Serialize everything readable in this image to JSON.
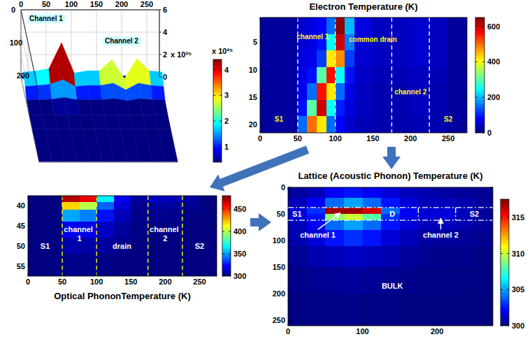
{
  "chart_data": [
    {
      "type": "surface",
      "x": [
        0,
        25,
        50,
        75,
        100,
        125,
        150,
        175,
        200,
        225,
        250,
        275
      ],
      "y": [
        0,
        20,
        40,
        60,
        80,
        120,
        160,
        200,
        260
      ],
      "z": [
        [
          0.1,
          0.1,
          0.1,
          0.1,
          0.1,
          0.1,
          0.1,
          0.1,
          0.1,
          0.1,
          0.1,
          0.1
        ],
        [
          0.4,
          0.4,
          0.5,
          0.8,
          0.4,
          0.4,
          0.4,
          0.5,
          0.3,
          0.5,
          0.4,
          0.4
        ],
        [
          1.6,
          1.7,
          1.9,
          4.2,
          1.5,
          1.7,
          1.7,
          2.7,
          1.0,
          2.8,
          1.7,
          1.6
        ],
        [
          0.9,
          1.0,
          1.1,
          1.5,
          0.9,
          1.0,
          1.0,
          1.2,
          0.6,
          1.2,
          1.0,
          0.9
        ],
        [
          0.3,
          0.3,
          0.35,
          0.5,
          0.3,
          0.3,
          0.3,
          0.4,
          0.2,
          0.4,
          0.3,
          0.3
        ],
        [
          0.1,
          0.1,
          0.1,
          0.15,
          0.1,
          0.1,
          0.1,
          0.1,
          0.1,
          0.1,
          0.1,
          0.1
        ],
        [
          0.05,
          0.05,
          0.05,
          0.05,
          0.05,
          0.05,
          0.05,
          0.05,
          0.05,
          0.05,
          0.05,
          0.05
        ],
        [
          0.05,
          0.05,
          0.05,
          0.05,
          0.05,
          0.05,
          0.05,
          0.05,
          0.05,
          0.05,
          0.05,
          0.05
        ],
        [
          0.05,
          0.05,
          0.05,
          0.05,
          0.05,
          0.05,
          0.05,
          0.05,
          0.05,
          0.05,
          0.05,
          0.05
        ]
      ],
      "xlim": [
        0,
        275
      ],
      "ylim": [
        0,
        260
      ],
      "zlim": [
        0,
        6
      ],
      "xticks": [
        0,
        50,
        100,
        150,
        200,
        250
      ],
      "yticks": [
        0,
        100,
        200
      ],
      "zticks": [
        0,
        2,
        4,
        6
      ],
      "z_label": "x 10²⁵",
      "clim": [
        0.4,
        4.4
      ],
      "cticks": [
        1,
        2,
        3,
        4
      ],
      "colorbar_label": "x 10²⁵",
      "grid": true,
      "annotations": [
        {
          "text": "Channel 1",
          "x": 50,
          "y": 0,
          "z": 5.2
        },
        {
          "text": "Channel 2",
          "x": 200,
          "y": 0,
          "z": 3.2
        }
      ]
    },
    {
      "type": "heatmap",
      "title": "Electron Temperature (K)",
      "x_edges": [
        0,
        25,
        50,
        62,
        75,
        88,
        100,
        112,
        125,
        150,
        175,
        200,
        225,
        250,
        275
      ],
      "y_edges": [
        0.5,
        3.5,
        6.5,
        9.5,
        12.5,
        15.5,
        18.5,
        21.5
      ],
      "cells": [
        [
          20,
          20,
          50,
          60,
          80,
          150,
          640,
          200,
          60,
          40,
          40,
          50,
          40,
          20
        ],
        [
          20,
          20,
          55,
          60,
          90,
          250,
          600,
          160,
          55,
          40,
          40,
          50,
          40,
          20
        ],
        [
          20,
          20,
          60,
          70,
          120,
          420,
          480,
          120,
          50,
          40,
          40,
          50,
          40,
          20
        ],
        [
          20,
          20,
          65,
          90,
          300,
          560,
          250,
          90,
          45,
          35,
          35,
          40,
          35,
          20
        ],
        [
          20,
          20,
          70,
          150,
          560,
          420,
          150,
          70,
          40,
          30,
          30,
          40,
          30,
          20
        ],
        [
          20,
          20,
          90,
          300,
          600,
          250,
          100,
          60,
          40,
          30,
          30,
          40,
          30,
          20
        ],
        [
          20,
          20,
          150,
          500,
          420,
          150,
          80,
          50,
          35,
          30,
          30,
          35,
          30,
          20
        ]
      ],
      "xlim": [
        0,
        275
      ],
      "ylim": [
        21.5,
        0.5
      ],
      "xticks": [
        0,
        50,
        100,
        150,
        200,
        250
      ],
      "yticks": [
        5,
        10,
        15,
        20
      ],
      "clim": [
        0,
        650
      ],
      "cticks": [
        0,
        200,
        400,
        600
      ],
      "vlines": [
        {
          "x": 50,
          "color": "#ffffff",
          "line_style": "dashed"
        },
        {
          "x": 100,
          "color": "#ffffff",
          "line_style": "dashed"
        },
        {
          "x": 175,
          "color": "#ffffff",
          "line_style": "dashed"
        },
        {
          "x": 225,
          "color": "#ffffff",
          "line_style": "dashed"
        }
      ],
      "annotations": [
        {
          "text": "S1",
          "x": 25,
          "y": 19,
          "color": "#ffff00"
        },
        {
          "text": "channel 1",
          "x": 70,
          "y": 4,
          "color": "#ffff00"
        },
        {
          "text": "common drain",
          "x": 150,
          "y": 4.5,
          "color": "#ffff00"
        },
        {
          "text": "channel 2",
          "x": 200,
          "y": 14,
          "color": "#ffff00"
        },
        {
          "text": "S2",
          "x": 250,
          "y": 19,
          "color": "#ffff00"
        }
      ]
    },
    {
      "type": "heatmap",
      "title": "Optical PhononTemperature (K)",
      "x_edges": [
        0,
        25,
        50,
        75,
        100,
        125,
        150,
        175,
        200,
        225,
        250,
        275
      ],
      "y_edges": [
        37.5,
        39,
        41,
        44,
        48,
        52,
        57.5
      ],
      "cells": [
        [
          300,
          300,
          470,
          460,
          365,
          320,
          305,
          312,
          310,
          306,
          300
        ],
        [
          300,
          300,
          420,
          400,
          340,
          315,
          303,
          306,
          305,
          303,
          300
        ],
        [
          300,
          300,
          352,
          345,
          325,
          310,
          302,
          303,
          302,
          301,
          300
        ],
        [
          300,
          300,
          320,
          318,
          312,
          305,
          301,
          301,
          301,
          300,
          300
        ],
        [
          300,
          300,
          308,
          307,
          305,
          302,
          300,
          300,
          300,
          300,
          300
        ],
        [
          300,
          300,
          302,
          302,
          301,
          300,
          300,
          300,
          300,
          300,
          300
        ]
      ],
      "xlim": [
        0,
        275
      ],
      "ylim": [
        57.5,
        37.5
      ],
      "xticks": [
        0,
        50,
        100,
        150,
        200,
        250
      ],
      "yticks": [
        40,
        45,
        50,
        55
      ],
      "clim": [
        300,
        480
      ],
      "cticks": [
        300,
        350,
        400,
        450
      ],
      "vlines": [
        {
          "x": 50,
          "color": "#ffff00",
          "line_style": "dashed"
        },
        {
          "x": 100,
          "color": "#ffff00",
          "line_style": "dashed"
        },
        {
          "x": 175,
          "color": "#ffff00",
          "line_style": "dashed"
        },
        {
          "x": 225,
          "color": "#ffff00",
          "line_style": "dashed"
        }
      ],
      "annotations": [
        {
          "text": "S1",
          "x": 25,
          "y": 50,
          "color": "#ffffff"
        },
        {
          "text": "channel 1",
          "x": 75,
          "y": 47,
          "color": "#ffffff"
        },
        {
          "text": "drain",
          "x": 137,
          "y": 50,
          "color": "#ffffff"
        },
        {
          "text": "channel 2",
          "x": 200,
          "y": 47,
          "color": "#ffffff"
        },
        {
          "text": "S2",
          "x": 250,
          "y": 50,
          "color": "#ffffff"
        }
      ]
    },
    {
      "type": "heatmap",
      "title": "Lattice (Acoustic Phonon) Temperature (K)",
      "x_edges": [
        0,
        25,
        50,
        75,
        100,
        125,
        150,
        175,
        200,
        225,
        250,
        275
      ],
      "y_edges": [
        0,
        20,
        38,
        50,
        62,
        80,
        110,
        150,
        200,
        260
      ],
      "cells": [
        [
          300.5,
          301,
          302,
          302.5,
          302,
          301.5,
          301,
          300.8,
          300.6,
          300.5,
          300.3
        ],
        [
          301,
          302,
          304,
          305,
          304,
          302.5,
          301.5,
          301,
          301,
          300.8,
          300.5
        ],
        [
          301.5,
          303,
          317,
          317,
          316,
          304,
          302,
          301.5,
          301.5,
          301,
          300.5
        ],
        [
          301.5,
          302.5,
          309,
          310,
          308,
          303,
          302,
          301.5,
          301.5,
          301,
          300.5
        ],
        [
          301,
          302,
          304,
          305,
          304,
          302.5,
          301.5,
          301,
          301,
          300.8,
          300.5
        ],
        [
          300.8,
          301.5,
          302.5,
          303,
          302.5,
          301.5,
          301,
          300.6,
          300.5,
          300.4,
          300.3
        ],
        [
          300.4,
          300.8,
          301,
          301.2,
          301,
          300.8,
          300.5,
          300.3,
          300.2,
          300.2,
          300.1
        ],
        [
          300.2,
          300.3,
          300.4,
          300.5,
          300.4,
          300.3,
          300.2,
          300.1,
          300.1,
          300.1,
          300.05
        ],
        [
          300.05,
          300.1,
          300.1,
          300.15,
          300.1,
          300.1,
          300.05,
          300.05,
          300.05,
          300.05,
          300
        ]
      ],
      "xlim": [
        0,
        275
      ],
      "ylim": [
        260,
        0
      ],
      "xticks": [
        0,
        100,
        200
      ],
      "yticks": [
        0,
        50,
        100,
        150,
        200,
        250
      ],
      "clim": [
        300,
        317.5
      ],
      "cticks": [
        300,
        305,
        310,
        315
      ],
      "hlines": [
        {
          "y": 38,
          "color": "#ffffff",
          "line_style": "dashdot"
        },
        {
          "y": 62,
          "color": "#ffffff",
          "line_style": "dashdot"
        }
      ],
      "vlines": [
        {
          "x": 175,
          "color": "#ffffff",
          "line_style": "dashdot"
        },
        {
          "x": 225,
          "color": "#ffffff",
          "line_style": "dashdot"
        }
      ],
      "annotations": [
        {
          "text": "S1",
          "x": 12,
          "y": 50,
          "color": "#ffffff"
        },
        {
          "text": "D",
          "x": 140,
          "y": 50,
          "color": "#ffffff"
        },
        {
          "text": "S2",
          "x": 250,
          "y": 50,
          "color": "#ffffff"
        },
        {
          "text": "channel 1",
          "x": 40,
          "y": 90,
          "color": "#ffffff",
          "arrow_to": [
            70,
            48
          ]
        },
        {
          "text": "channel 2",
          "x": 205,
          "y": 90,
          "color": "#ffffff",
          "arrow_to": [
            205,
            58
          ]
        },
        {
          "text": "BULK",
          "x": 140,
          "y": 185,
          "color": "#ffffff"
        }
      ]
    }
  ]
}
